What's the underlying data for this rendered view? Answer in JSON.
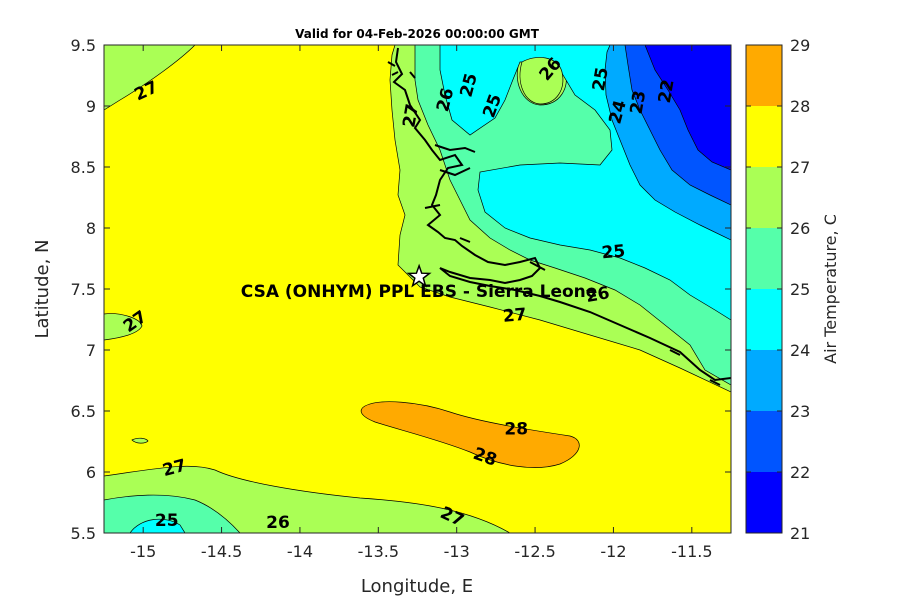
{
  "title": "Valid for 04-Feb-2026 00:00:00 GMT",
  "chart_data": {
    "type": "heatmap",
    "subtype": "filled-contour-map",
    "title": "Valid for 04-Feb-2026 00:00:00 GMT",
    "xlabel": "Longitude, E",
    "ylabel": "Latitude, N",
    "xlim": [
      -15.25,
      -11.25
    ],
    "ylim": [
      5.5,
      9.5
    ],
    "x_ticks": [
      -15,
      -14.5,
      -14,
      -13.5,
      -13,
      -12.5,
      -12,
      -11.5
    ],
    "x_tick_labels": [
      "-15",
      "-14.5",
      "-14",
      "-13.5",
      "-13",
      "-12.5",
      "-12",
      "-11.5"
    ],
    "y_ticks": [
      5.5,
      6,
      6.5,
      7,
      7.5,
      8,
      8.5,
      9,
      9.5
    ],
    "y_tick_labels": [
      "5.5",
      "6",
      "6.5",
      "7",
      "7.5",
      "8",
      "8.5",
      "9",
      "9.5"
    ],
    "variable": "Air Temperature, C",
    "colorbar": {
      "label": "Air Temperature, C",
      "levels": [
        21,
        22,
        23,
        24,
        25,
        26,
        27,
        28,
        29
      ],
      "level_labels": [
        "21",
        "22",
        "23",
        "24",
        "25",
        "26",
        "27",
        "28",
        "29"
      ],
      "colors": [
        "#0000ff",
        "#0055ff",
        "#00aaff",
        "#00ffff",
        "#55ffaa",
        "#aaff55",
        "#ffff00",
        "#ffaa00",
        "#ff5500"
      ]
    },
    "contour_labels": [
      {
        "text": "27",
        "lon": -14.98,
        "lat": 9.12,
        "angle": -25
      },
      {
        "text": "26",
        "lon": -13.07,
        "lat": 9.05,
        "angle": -75
      },
      {
        "text": "27",
        "lon": -13.29,
        "lat": 8.92,
        "angle": -80
      },
      {
        "text": "25",
        "lon": -12.92,
        "lat": 9.17,
        "angle": -75
      },
      {
        "text": "25",
        "lon": -12.77,
        "lat": 9.0,
        "angle": -70
      },
      {
        "text": "26",
        "lon": -12.4,
        "lat": 9.3,
        "angle": -50
      },
      {
        "text": "25",
        "lon": -12.08,
        "lat": 9.22,
        "angle": -80
      },
      {
        "text": "24",
        "lon": -11.97,
        "lat": 8.95,
        "angle": -75
      },
      {
        "text": "23",
        "lon": -11.84,
        "lat": 9.03,
        "angle": -80
      },
      {
        "text": "22",
        "lon": -11.66,
        "lat": 9.12,
        "angle": -80
      },
      {
        "text": "25",
        "lon": -12.0,
        "lat": 7.8,
        "angle": -5
      },
      {
        "text": "26",
        "lon": -12.1,
        "lat": 7.45,
        "angle": -10
      },
      {
        "text": "27",
        "lon": -12.63,
        "lat": 7.28,
        "angle": -5
      },
      {
        "text": "27",
        "lon": -15.05,
        "lat": 7.23,
        "angle": -35
      },
      {
        "text": "28",
        "lon": -12.62,
        "lat": 6.35,
        "angle": 0
      },
      {
        "text": "28",
        "lon": -12.82,
        "lat": 6.12,
        "angle": 20
      },
      {
        "text": "27",
        "lon": -14.8,
        "lat": 6.03,
        "angle": -15
      },
      {
        "text": "27",
        "lon": -13.03,
        "lat": 5.63,
        "angle": 25
      },
      {
        "text": "25",
        "lon": -14.85,
        "lat": 5.6,
        "angle": 0
      },
      {
        "text": "26",
        "lon": -14.14,
        "lat": 5.58,
        "angle": 0
      }
    ],
    "marker": {
      "label": "CSA (ONHYM) PPL EBS  - Sierra Leone",
      "lon": -13.24,
      "lat": 7.6,
      "symbol": "star"
    }
  }
}
